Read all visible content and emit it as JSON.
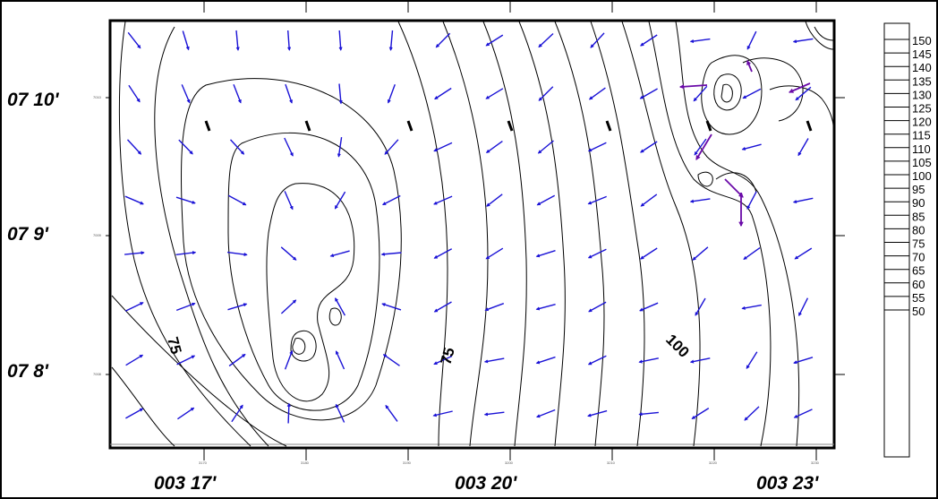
{
  "map": {
    "y_labels": [
      "07 10'",
      "07 9'",
      "07 8'"
    ],
    "x_labels": [
      "003 17'",
      "003 20'",
      "003 23'"
    ],
    "tiny_x_ticks": [
      "3170",
      "3180",
      "3190",
      "3200",
      "3210",
      "3220",
      "3230"
    ],
    "tiny_y_ticks": [
      "7010",
      "7009",
      "7008"
    ],
    "contour_labels": [
      "75",
      "75",
      "100"
    ],
    "arrow_color": "#1a12d6",
    "arrow_highlight_color": "#6a0aa8"
  },
  "legend": {
    "levels": [
      "150",
      "145",
      "140",
      "135",
      "130",
      "125",
      "120",
      "115",
      "110",
      "105",
      "100",
      "95",
      "90",
      "85",
      "80",
      "75",
      "70",
      "65",
      "60",
      "55",
      "50"
    ]
  }
}
